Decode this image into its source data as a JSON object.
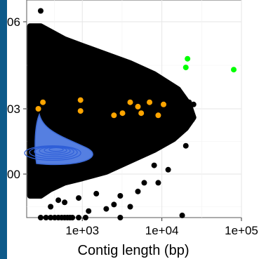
{
  "chart_data": {
    "type": "scatter",
    "title": "",
    "xlabel": "Contig length (bp)",
    "ylabel": "",
    "x_scale": "log10",
    "xlim": [
      200,
      100000
    ],
    "x_ticks": [
      {
        "value": 1000,
        "label": "1e+03"
      },
      {
        "value": 10000,
        "label": "1e+04"
      },
      {
        "value": 100000,
        "label": "1e+05"
      }
    ],
    "y_tick_labels_visible": [
      "06",
      "03",
      "00"
    ],
    "grid": true,
    "series": [
      {
        "color": "#000000",
        "dense_region_polygon": [
          [
            220,
            0.88
          ],
          [
            300,
            0.88
          ],
          [
            600,
            0.82
          ],
          [
            1000,
            0.79
          ],
          [
            2000,
            0.75
          ],
          [
            4000,
            0.71
          ],
          [
            8000,
            0.66
          ],
          [
            16000,
            0.59
          ],
          [
            22000,
            0.52
          ],
          [
            25000,
            0.46
          ],
          [
            20000,
            0.41
          ],
          [
            14000,
            0.36
          ],
          [
            8000,
            0.31
          ],
          [
            4000,
            0.26
          ],
          [
            2000,
            0.21
          ],
          [
            1000,
            0.18
          ],
          [
            600,
            0.16
          ],
          [
            400,
            0.13
          ],
          [
            300,
            0.1
          ],
          [
            220,
            0.1
          ]
        ],
        "points": [
          [
            300,
            0.95
          ],
          [
            1000,
            0.72
          ],
          [
            1300,
            0.7
          ],
          [
            2000,
            0.66
          ],
          [
            700,
            0.77
          ],
          [
            12000,
            0.58
          ],
          [
            22000,
            0.53
          ],
          [
            25000,
            0.52
          ],
          [
            24000,
            0.45
          ],
          [
            20000,
            0.33
          ],
          [
            9000,
            0.16
          ],
          [
            12000,
            0.22
          ],
          [
            8000,
            0.24
          ],
          [
            500,
            0.08
          ],
          [
            600,
            0.07
          ],
          [
            400,
            0.05
          ],
          [
            900,
            0.09
          ],
          [
            1500,
            0.11
          ],
          [
            2000,
            0.04
          ],
          [
            2500,
            0.06
          ],
          [
            4000,
            0.05
          ],
          [
            5000,
            0.12
          ],
          [
            6000,
            0.16
          ],
          [
            3000,
            0.1
          ],
          [
            18000,
            0.01
          ],
          [
            1200,
            0.03
          ],
          [
            300,
            0.0
          ],
          [
            350,
            0.0
          ],
          [
            400,
            0.0
          ],
          [
            450,
            0.0
          ],
          [
            500,
            0.0
          ],
          [
            550,
            0.0
          ],
          [
            600,
            0.0
          ],
          [
            650,
            0.0
          ],
          [
            700,
            0.0
          ],
          [
            750,
            0.0
          ],
          [
            900,
            0.0
          ],
          [
            1100,
            0.0
          ],
          [
            3000,
            0.0
          ]
        ]
      },
      {
        "color": "#ffa500",
        "points": [
          [
            320,
            0.53
          ],
          [
            280,
            0.5
          ],
          [
            950,
            0.54
          ],
          [
            950,
            0.49
          ],
          [
            2500,
            0.47
          ],
          [
            3200,
            0.48
          ],
          [
            4000,
            0.53
          ],
          [
            5000,
            0.51
          ],
          [
            5500,
            0.48
          ],
          [
            7000,
            0.53
          ],
          [
            9000,
            0.47
          ],
          [
            10500,
            0.52
          ]
        ]
      },
      {
        "color": "#00ff00",
        "points": [
          [
            21000,
            0.73
          ],
          [
            20000,
            0.69
          ],
          [
            80000,
            0.68
          ]
        ]
      }
    ],
    "density_contours": {
      "color": "#3f6fe0",
      "center": [
        470,
        0.3
      ],
      "levels": 6
    },
    "ylim": [
      0.0,
      1.0
    ]
  }
}
